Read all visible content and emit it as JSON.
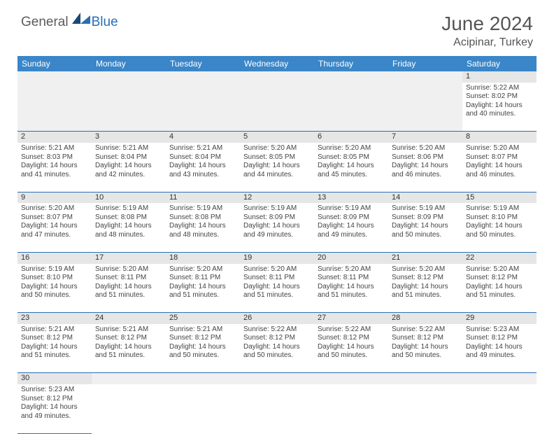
{
  "brand": {
    "part1": "General",
    "part2": "Blue"
  },
  "title": "June 2024",
  "location": "Acipinar, Turkey",
  "colors": {
    "header_bg": "#3a86c8",
    "border": "#2a6fb5",
    "daynum_bg": "#e6e6e6",
    "text": "#444444"
  },
  "weekdays": [
    "Sunday",
    "Monday",
    "Tuesday",
    "Wednesday",
    "Thursday",
    "Friday",
    "Saturday"
  ],
  "first_weekday_index": 6,
  "days": [
    {
      "n": 1,
      "sunrise": "5:22 AM",
      "sunset": "8:02 PM",
      "daylight": "14 hours and 40 minutes."
    },
    {
      "n": 2,
      "sunrise": "5:21 AM",
      "sunset": "8:03 PM",
      "daylight": "14 hours and 41 minutes."
    },
    {
      "n": 3,
      "sunrise": "5:21 AM",
      "sunset": "8:04 PM",
      "daylight": "14 hours and 42 minutes."
    },
    {
      "n": 4,
      "sunrise": "5:21 AM",
      "sunset": "8:04 PM",
      "daylight": "14 hours and 43 minutes."
    },
    {
      "n": 5,
      "sunrise": "5:20 AM",
      "sunset": "8:05 PM",
      "daylight": "14 hours and 44 minutes."
    },
    {
      "n": 6,
      "sunrise": "5:20 AM",
      "sunset": "8:05 PM",
      "daylight": "14 hours and 45 minutes."
    },
    {
      "n": 7,
      "sunrise": "5:20 AM",
      "sunset": "8:06 PM",
      "daylight": "14 hours and 46 minutes."
    },
    {
      "n": 8,
      "sunrise": "5:20 AM",
      "sunset": "8:07 PM",
      "daylight": "14 hours and 46 minutes."
    },
    {
      "n": 9,
      "sunrise": "5:20 AM",
      "sunset": "8:07 PM",
      "daylight": "14 hours and 47 minutes."
    },
    {
      "n": 10,
      "sunrise": "5:19 AM",
      "sunset": "8:08 PM",
      "daylight": "14 hours and 48 minutes."
    },
    {
      "n": 11,
      "sunrise": "5:19 AM",
      "sunset": "8:08 PM",
      "daylight": "14 hours and 48 minutes."
    },
    {
      "n": 12,
      "sunrise": "5:19 AM",
      "sunset": "8:09 PM",
      "daylight": "14 hours and 49 minutes."
    },
    {
      "n": 13,
      "sunrise": "5:19 AM",
      "sunset": "8:09 PM",
      "daylight": "14 hours and 49 minutes."
    },
    {
      "n": 14,
      "sunrise": "5:19 AM",
      "sunset": "8:09 PM",
      "daylight": "14 hours and 50 minutes."
    },
    {
      "n": 15,
      "sunrise": "5:19 AM",
      "sunset": "8:10 PM",
      "daylight": "14 hours and 50 minutes."
    },
    {
      "n": 16,
      "sunrise": "5:19 AM",
      "sunset": "8:10 PM",
      "daylight": "14 hours and 50 minutes."
    },
    {
      "n": 17,
      "sunrise": "5:20 AM",
      "sunset": "8:11 PM",
      "daylight": "14 hours and 51 minutes."
    },
    {
      "n": 18,
      "sunrise": "5:20 AM",
      "sunset": "8:11 PM",
      "daylight": "14 hours and 51 minutes."
    },
    {
      "n": 19,
      "sunrise": "5:20 AM",
      "sunset": "8:11 PM",
      "daylight": "14 hours and 51 minutes."
    },
    {
      "n": 20,
      "sunrise": "5:20 AM",
      "sunset": "8:11 PM",
      "daylight": "14 hours and 51 minutes."
    },
    {
      "n": 21,
      "sunrise": "5:20 AM",
      "sunset": "8:12 PM",
      "daylight": "14 hours and 51 minutes."
    },
    {
      "n": 22,
      "sunrise": "5:20 AM",
      "sunset": "8:12 PM",
      "daylight": "14 hours and 51 minutes."
    },
    {
      "n": 23,
      "sunrise": "5:21 AM",
      "sunset": "8:12 PM",
      "daylight": "14 hours and 51 minutes."
    },
    {
      "n": 24,
      "sunrise": "5:21 AM",
      "sunset": "8:12 PM",
      "daylight": "14 hours and 51 minutes."
    },
    {
      "n": 25,
      "sunrise": "5:21 AM",
      "sunset": "8:12 PM",
      "daylight": "14 hours and 50 minutes."
    },
    {
      "n": 26,
      "sunrise": "5:22 AM",
      "sunset": "8:12 PM",
      "daylight": "14 hours and 50 minutes."
    },
    {
      "n": 27,
      "sunrise": "5:22 AM",
      "sunset": "8:12 PM",
      "daylight": "14 hours and 50 minutes."
    },
    {
      "n": 28,
      "sunrise": "5:22 AM",
      "sunset": "8:12 PM",
      "daylight": "14 hours and 50 minutes."
    },
    {
      "n": 29,
      "sunrise": "5:23 AM",
      "sunset": "8:12 PM",
      "daylight": "14 hours and 49 minutes."
    },
    {
      "n": 30,
      "sunrise": "5:23 AM",
      "sunset": "8:12 PM",
      "daylight": "14 hours and 49 minutes."
    }
  ],
  "labels": {
    "sunrise": "Sunrise:",
    "sunset": "Sunset:",
    "daylight": "Daylight:"
  }
}
